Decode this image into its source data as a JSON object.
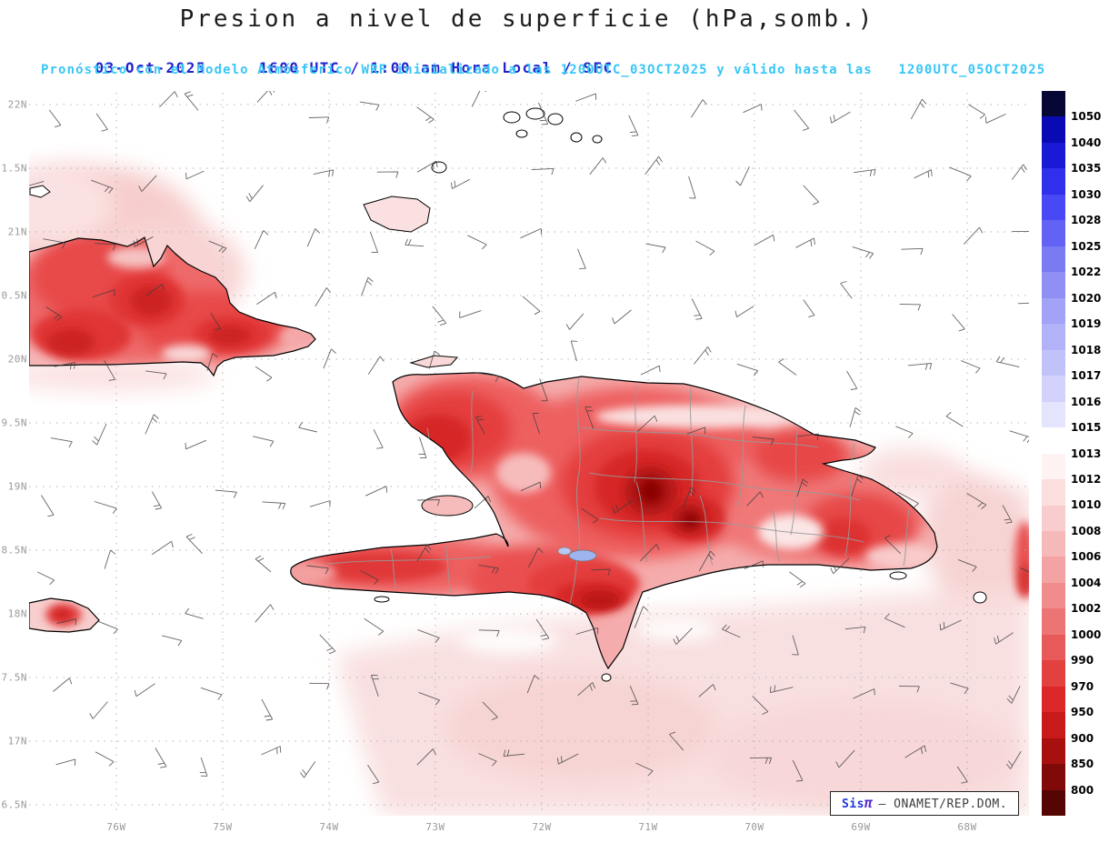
{
  "header": {
    "title": "Presion a nivel de superficie (hPa,somb.)",
    "date": "03-Oct-2025",
    "time": "1600 UTC / 1:00 am Hora Local / SFC",
    "forecast": "Pronóstico con el Modelo Atmósferico WRF inicializado a las 1200UTC_03OCT2025 y válido hasta las   1200UTC_05OCT2025"
  },
  "map": {
    "lat_labels": [
      "22N",
      "1.5N",
      "21N",
      "0.5N",
      "20N",
      "9.5N",
      "19N",
      "8.5N",
      "18N",
      "7.5N",
      "17N",
      "6.5N"
    ],
    "lon_labels": [
      "76W",
      "75W",
      "74W",
      "73W",
      "72W",
      "71W",
      "70W",
      "69W",
      "68W"
    ]
  },
  "colorbar": {
    "unit": "hPa",
    "labels": [
      "1050",
      "1040",
      "1035",
      "1030",
      "1028",
      "1025",
      "1022",
      "1020",
      "1019",
      "1018",
      "1017",
      "1016",
      "1015",
      "1013",
      "1012",
      "1010",
      "1008",
      "1006",
      "1004",
      "1002",
      "1000",
      "990",
      "970",
      "950",
      "900",
      "850",
      "800"
    ],
    "colors": [
      "#070736",
      "#0A0AB4",
      "#1A1AD6",
      "#3030EC",
      "#4848F4",
      "#6262F4",
      "#7A7AF2",
      "#9090F4",
      "#A2A2F6",
      "#B2B2F8",
      "#C2C2FA",
      "#D2D2FC",
      "#E4E4FD",
      "#FFFFFF",
      "#FFF2F2",
      "#FBDFDF",
      "#F9CDCD",
      "#F6B9B9",
      "#F3A3A3",
      "#F08C8C",
      "#EC7474",
      "#E85A5A",
      "#E34040",
      "#DC2828",
      "#C81A1A",
      "#A81010",
      "#800A0A",
      "#560505"
    ]
  },
  "attribution": {
    "brand": "Sis",
    "pi": "π",
    "text": "– ONAMET/REP.DOM."
  },
  "colors": {
    "title_text": "#1c1c1c",
    "date_blue": "#2323cb",
    "forecast_cyan": "#38c6f6",
    "axis_gray": "#9a9a9a"
  }
}
